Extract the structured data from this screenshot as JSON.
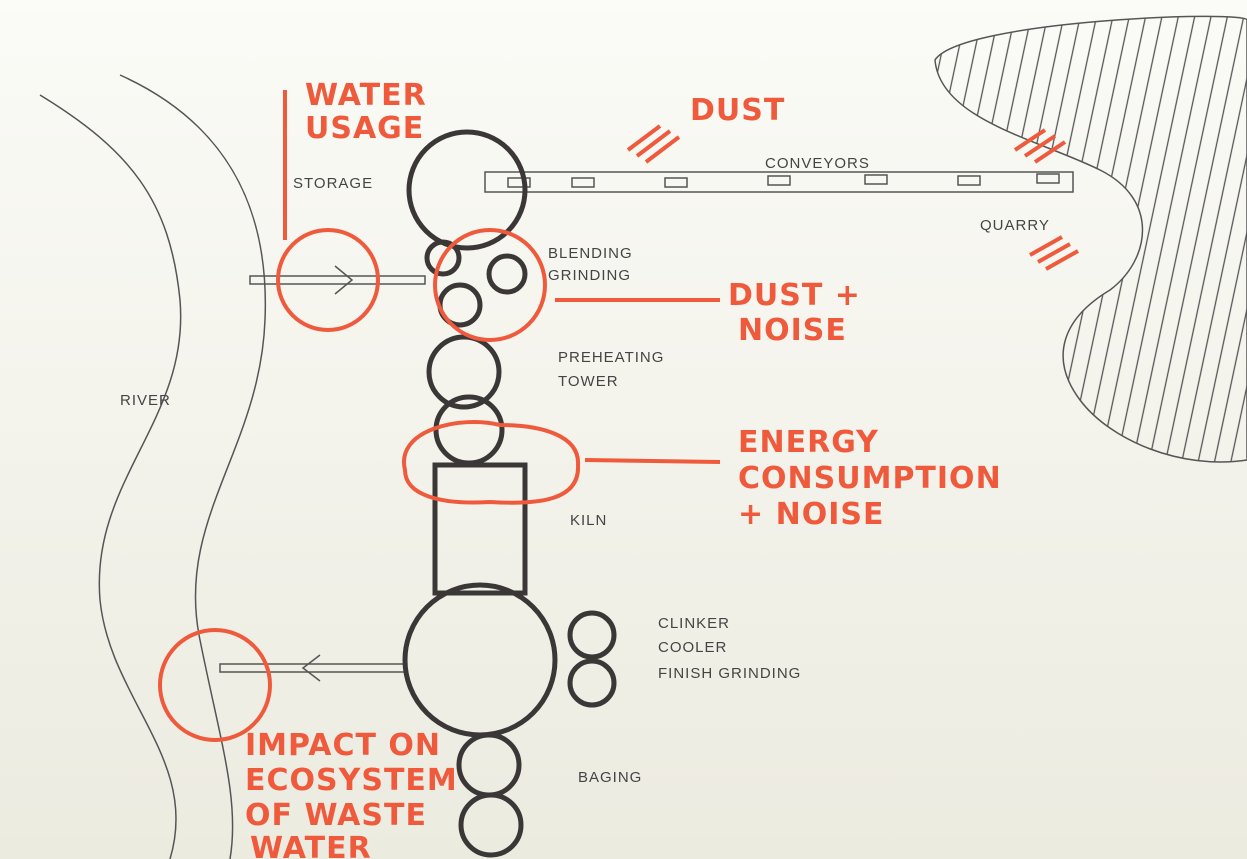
{
  "annotations": {
    "water_usage": [
      "WATER",
      "USAGE"
    ],
    "dust": [
      "DUST"
    ],
    "dust_noise": [
      "DUST +",
      "NOISE"
    ],
    "energy": [
      "ENERGY",
      "CONSUMPTION",
      "+ NOISE"
    ],
    "waste_water": [
      "IMPACT ON",
      "ECOSYSTEM",
      "OF WASTE",
      "WATER"
    ]
  },
  "labels": {
    "storage": "STORAGE",
    "conveyors": "CONVEYORS",
    "quarry": "QUARRY",
    "blending": [
      "BLENDING",
      "GRINDING"
    ],
    "preheating": [
      "PREHEATING",
      "TOWER"
    ],
    "river": "RIVER",
    "kiln": "KILN",
    "clinker": [
      "CLINKER",
      "COOLER",
      "FINISH GRINDING"
    ],
    "bagging": "BAGING"
  }
}
